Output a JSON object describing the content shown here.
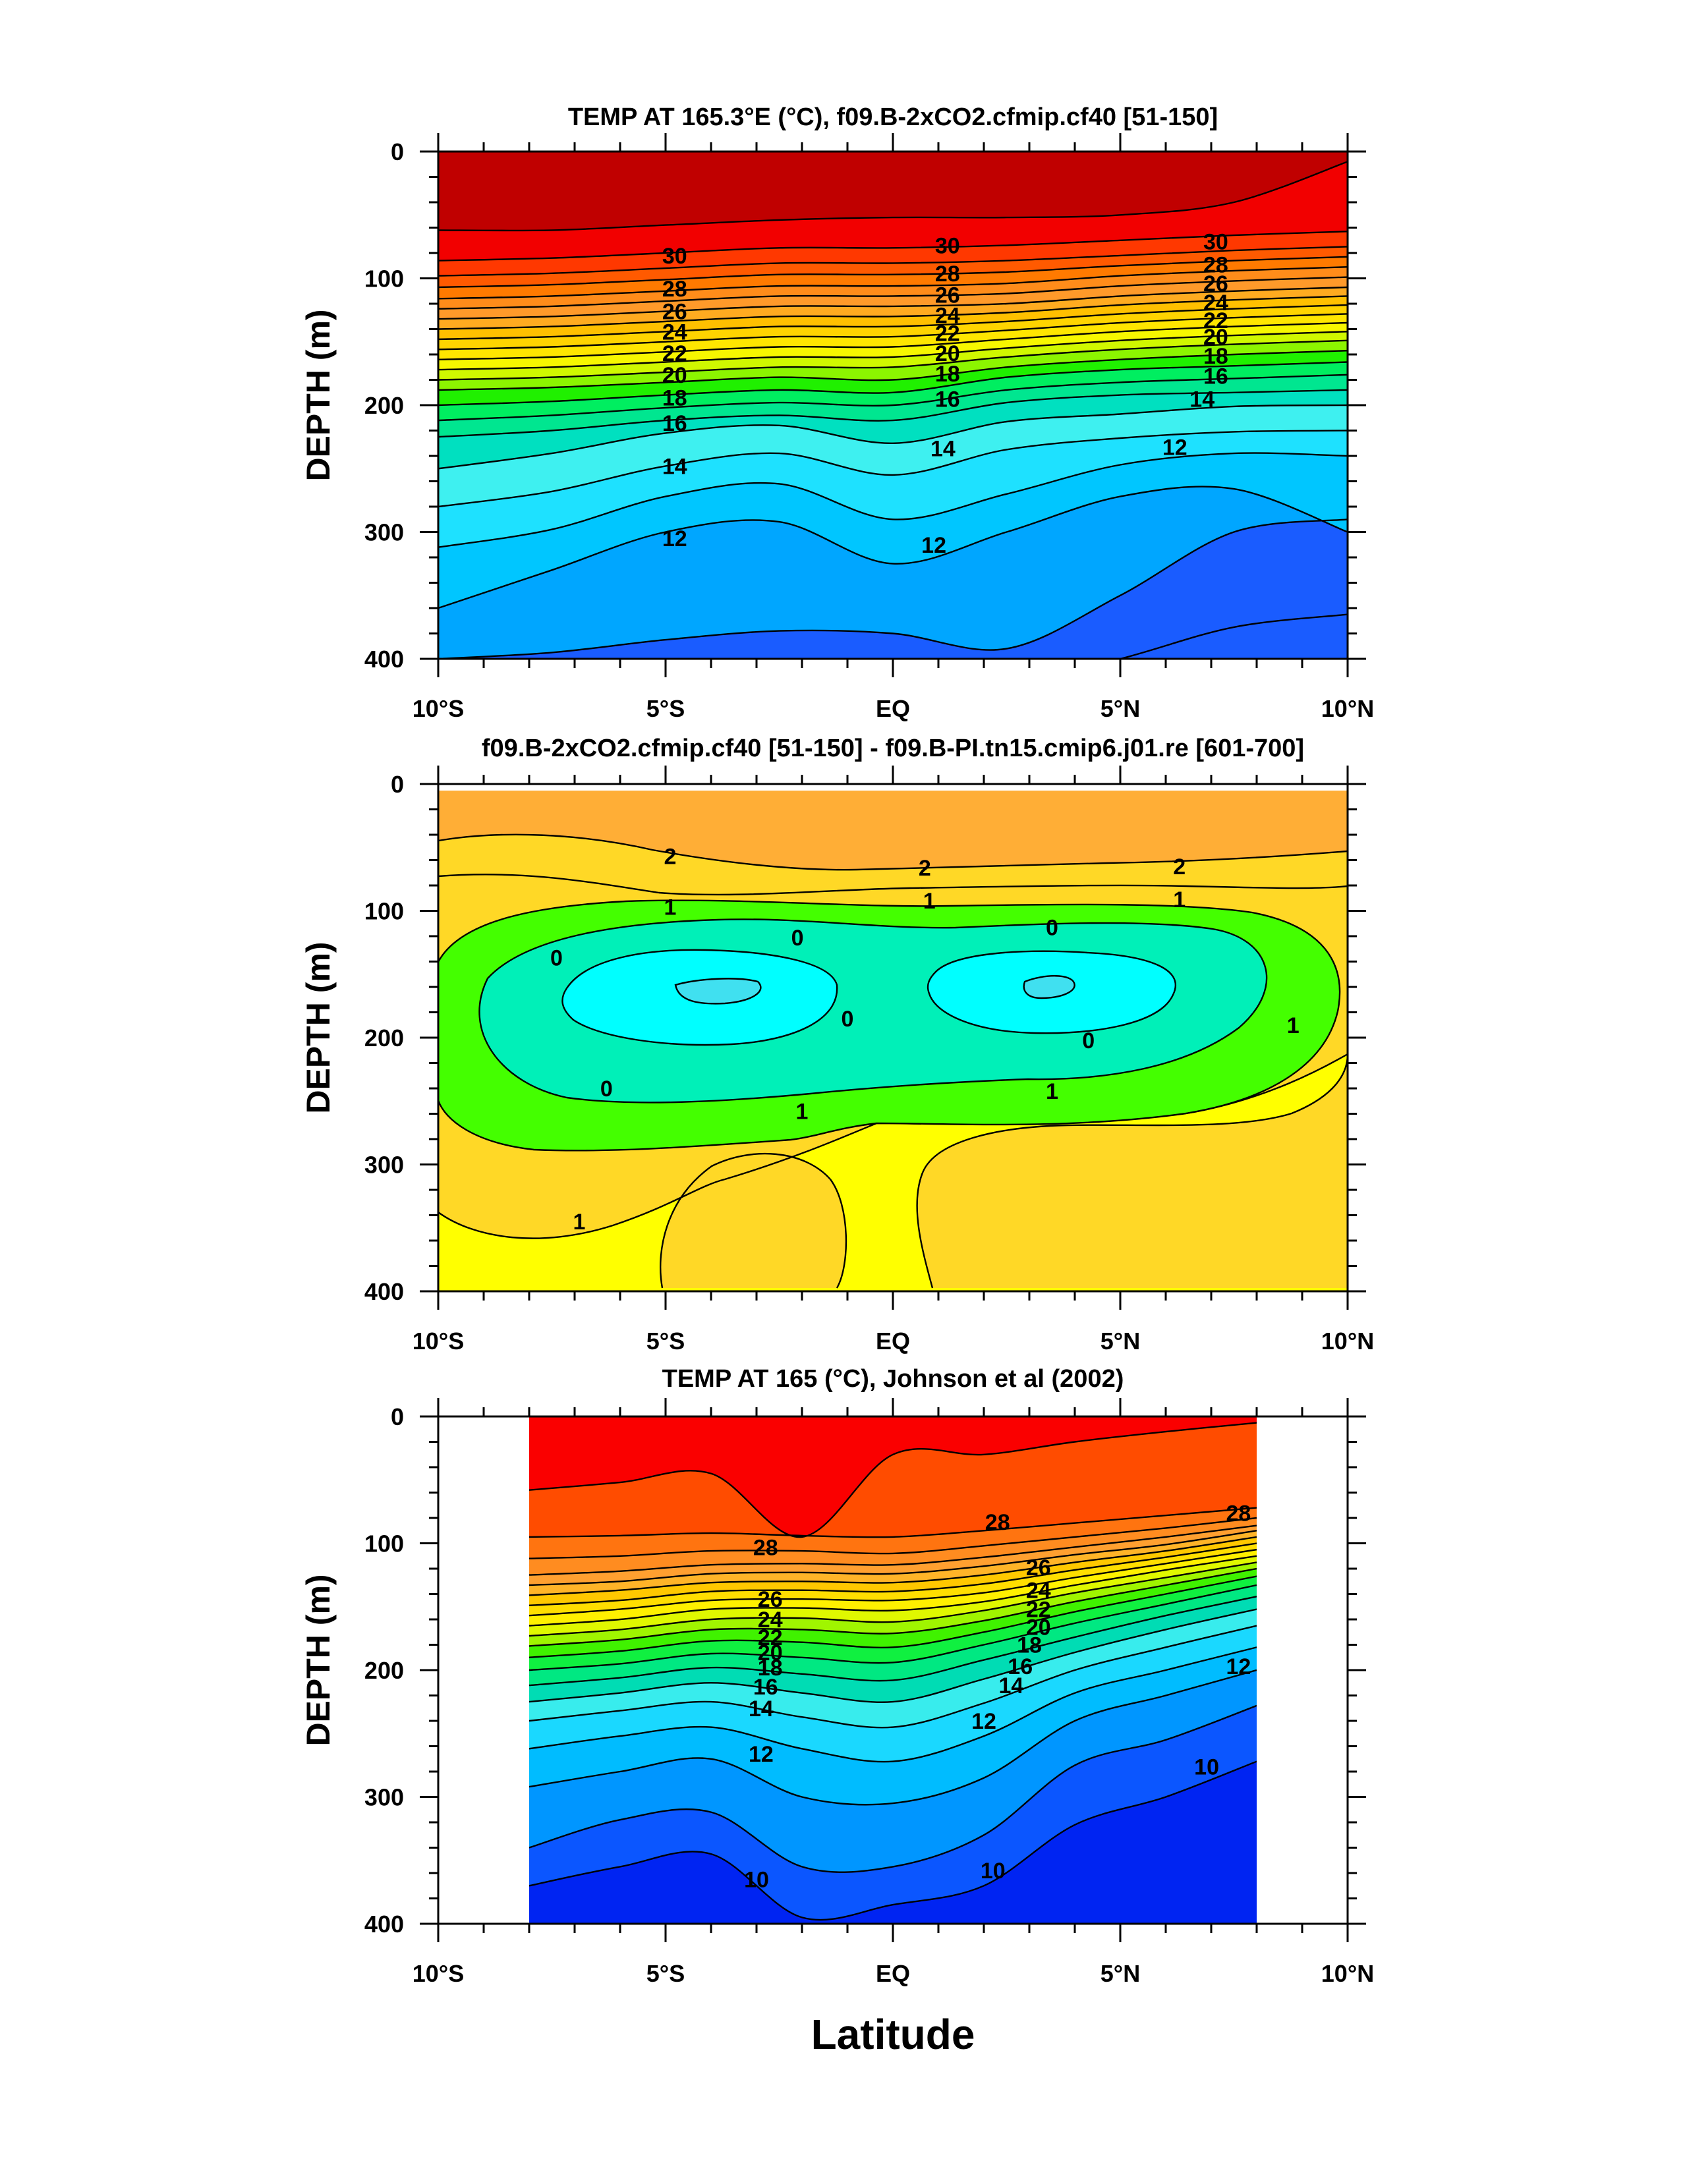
{
  "figure": {
    "xlabel": "Latitude"
  },
  "chart_data": [
    {
      "type": "contour",
      "title": "TEMP AT 165.3°E (°C), f09.B-2xCO2.cfmip.cf40 [51-150]",
      "xlabel": "",
      "ylabel": "DEPTH (m)",
      "xlim": [
        -10,
        10
      ],
      "ylim": [
        400,
        0
      ],
      "x_ticks": [
        -10,
        -5,
        0,
        5,
        10
      ],
      "x_tick_labels": [
        "10°S",
        "5°S",
        "EQ",
        "5°N",
        "10°N"
      ],
      "y_ticks": [
        0,
        100,
        200,
        300,
        400
      ],
      "y_tick_labels": [
        "0",
        "100",
        "200",
        "300",
        "400"
      ],
      "contour_interval": 1,
      "levels": [
        {
          "value": 10,
          "color": "#1a5cff",
          "depth": [
            440,
            440,
            440,
            440,
            440,
            425,
            400,
            375,
            365
          ]
        },
        {
          "value": 11,
          "color": "#00a6ff",
          "depth": [
            400,
            395,
            385,
            378,
            380,
            392,
            350,
            300,
            290
          ]
        },
        {
          "value": 12,
          "color": "#00c6ff",
          "depth": [
            360,
            330,
            300,
            292,
            325,
            300,
            272,
            266,
            300
          ]
        },
        {
          "value": 13,
          "color": "#1ee1ff",
          "depth": [
            312,
            298,
            272,
            262,
            290,
            270,
            247,
            238,
            240
          ]
        },
        {
          "value": 14,
          "color": "#3ef0f0",
          "depth": [
            280,
            268,
            248,
            238,
            255,
            235,
            226,
            221,
            220
          ]
        },
        {
          "value": 15,
          "color": "#00e0c0",
          "depth": [
            250,
            238,
            222,
            216,
            230,
            213,
            207,
            201,
            200
          ]
        },
        {
          "value": 16,
          "color": "#00e690",
          "depth": [
            225,
            220,
            212,
            208,
            212,
            198,
            192,
            190,
            188
          ]
        },
        {
          "value": 17,
          "color": "#00ee60",
          "depth": [
            212,
            208,
            202,
            198,
            200,
            188,
            182,
            179,
            176
          ]
        },
        {
          "value": 18,
          "color": "#20f000",
          "depth": [
            200,
            197,
            192,
            188,
            190,
            178,
            172,
            169,
            166
          ]
        },
        {
          "value": 19,
          "color": "#8cf500",
          "depth": [
            188,
            186,
            182,
            178,
            180,
            170,
            164,
            160,
            157
          ]
        },
        {
          "value": 20,
          "color": "#d0f800",
          "depth": [
            180,
            178,
            174,
            170,
            170,
            162,
            156,
            152,
            149
          ]
        },
        {
          "value": 21,
          "color": "#f7f700",
          "depth": [
            172,
            170,
            166,
            162,
            162,
            155,
            149,
            145,
            142
          ]
        },
        {
          "value": 22,
          "color": "#ffe600",
          "depth": [
            164,
            162,
            158,
            154,
            154,
            148,
            142,
            138,
            135
          ]
        },
        {
          "value": 23,
          "color": "#ffd400",
          "depth": [
            156,
            154,
            150,
            146,
            146,
            141,
            135,
            131,
            128
          ]
        },
        {
          "value": 24,
          "color": "#ffc000",
          "depth": [
            148,
            146,
            142,
            138,
            138,
            134,
            128,
            124,
            121
          ]
        },
        {
          "value": 25,
          "color": "#ffab20",
          "depth": [
            140,
            138,
            134,
            130,
            130,
            127,
            121,
            117,
            114
          ]
        },
        {
          "value": 26,
          "color": "#ff9a2a",
          "depth": [
            132,
            130,
            126,
            122,
            122,
            120,
            114,
            110,
            107
          ]
        },
        {
          "value": 27,
          "color": "#ff8c1a",
          "depth": [
            124,
            122,
            118,
            114,
            114,
            112,
            106,
            102,
            99
          ]
        },
        {
          "value": 28,
          "color": "#ff7a00",
          "depth": [
            116,
            114,
            110,
            106,
            106,
            104,
            98,
            94,
            91
          ]
        },
        {
          "value": 29,
          "color": "#ff5a00",
          "depth": [
            107,
            105,
            101,
            97,
            97,
            95,
            90,
            86,
            83
          ]
        },
        {
          "value": 30,
          "color": "#ff3800",
          "depth": [
            98,
            96,
            92,
            88,
            88,
            86,
            82,
            78,
            75
          ]
        },
        {
          "value": 31,
          "color": "#f20000",
          "depth": [
            86,
            84,
            80,
            76,
            76,
            74,
            70,
            66,
            63
          ]
        },
        {
          "value": 32,
          "color": "#c00000",
          "depth": [
            62,
            62,
            58,
            54,
            52,
            52,
            50,
            40,
            8
          ]
        }
      ],
      "profile_x": [
        -10,
        -7.5,
        -5,
        -2.5,
        0,
        2.5,
        5,
        7.5,
        10
      ],
      "contour_labels": [
        {
          "text": "30",
          "x": -4.8,
          "d": 82
        },
        {
          "text": "30",
          "x": 1.2,
          "d": 74
        },
        {
          "text": "30",
          "x": 7.1,
          "d": 71
        },
        {
          "text": "28",
          "x": -4.8,
          "d": 108
        },
        {
          "text": "28",
          "x": 1.2,
          "d": 96
        },
        {
          "text": "28",
          "x": 7.1,
          "d": 89
        },
        {
          "text": "26",
          "x": -4.8,
          "d": 126
        },
        {
          "text": "26",
          "x": 1.2,
          "d": 113
        },
        {
          "text": "26",
          "x": 7.1,
          "d": 104
        },
        {
          "text": "24",
          "x": -4.8,
          "d": 142
        },
        {
          "text": "24",
          "x": 1.2,
          "d": 129
        },
        {
          "text": "24",
          "x": 7.1,
          "d": 119
        },
        {
          "text": "22",
          "x": -4.8,
          "d": 159
        },
        {
          "text": "22",
          "x": 1.2,
          "d": 143
        },
        {
          "text": "22",
          "x": 7.1,
          "d": 133
        },
        {
          "text": "20",
          "x": -4.8,
          "d": 176
        },
        {
          "text": "20",
          "x": 1.2,
          "d": 159
        },
        {
          "text": "20",
          "x": 7.1,
          "d": 146
        },
        {
          "text": "18",
          "x": -4.8,
          "d": 194
        },
        {
          "text": "18",
          "x": 1.2,
          "d": 175
        },
        {
          "text": "18",
          "x": 7.1,
          "d": 161
        },
        {
          "text": "16",
          "x": -4.8,
          "d": 214
        },
        {
          "text": "16",
          "x": 1.2,
          "d": 195
        },
        {
          "text": "16",
          "x": 7.1,
          "d": 177
        },
        {
          "text": "14",
          "x": -4.8,
          "d": 248
        },
        {
          "text": "14",
          "x": 1.1,
          "d": 234
        },
        {
          "text": "14",
          "x": 6.8,
          "d": 195
        },
        {
          "text": "12",
          "x": -4.8,
          "d": 305
        },
        {
          "text": "12",
          "x": 0.9,
          "d": 310
        },
        {
          "text": "12",
          "x": 6.2,
          "d": 233
        }
      ]
    },
    {
      "type": "contour",
      "title": "f09.B-2xCO2.cfmip.cf40 [51-150] - f09.B-PI.tn15.cmip6.j01.re [601-700]",
      "xlabel": "",
      "ylabel": "DEPTH (m)",
      "xlim": [
        -10,
        10
      ],
      "ylim": [
        400,
        0
      ],
      "x_ticks": [
        -10,
        -5,
        0,
        5,
        10
      ],
      "x_tick_labels": [
        "10°S",
        "5°S",
        "EQ",
        "5°N",
        "10°N"
      ],
      "y_ticks": [
        0,
        100,
        200,
        300,
        400
      ],
      "y_tick_labels": [
        "0",
        "100",
        "200",
        "300",
        "400"
      ],
      "contour_labels": [
        {
          "text": "2",
          "x": -4.9,
          "d": 57
        },
        {
          "text": "2",
          "x": 0.7,
          "d": 66
        },
        {
          "text": "2",
          "x": 6.3,
          "d": 65
        },
        {
          "text": "1",
          "x": -4.9,
          "d": 97
        },
        {
          "text": "1",
          "x": 0.8,
          "d": 92
        },
        {
          "text": "1",
          "x": 6.3,
          "d": 91
        },
        {
          "text": "0",
          "x": -7.4,
          "d": 137
        },
        {
          "text": "0",
          "x": -2.1,
          "d": 121
        },
        {
          "text": "0",
          "x": 3.5,
          "d": 113
        },
        {
          "text": "0",
          "x": -1.0,
          "d": 185
        },
        {
          "text": "0",
          "x": 4.3,
          "d": 202
        },
        {
          "text": "0",
          "x": -6.3,
          "d": 240
        },
        {
          "text": "1",
          "x": -2.0,
          "d": 258
        },
        {
          "text": "1",
          "x": 3.5,
          "d": 242
        },
        {
          "text": "1",
          "x": -6.9,
          "d": 345
        },
        {
          "text": "1",
          "x": 8.8,
          "d": 190
        }
      ]
    },
    {
      "type": "contour",
      "title": "TEMP AT 165 (°C), Johnson et al (2002)",
      "xlabel": "",
      "ylabel": "DEPTH (m)",
      "xlim": [
        -10,
        10
      ],
      "ylim": [
        400,
        0
      ],
      "data_xrange": [
        -8,
        8
      ],
      "x_ticks": [
        -10,
        -5,
        0,
        5,
        10
      ],
      "x_tick_labels": [
        "10°S",
        "5°S",
        "EQ",
        "5°N",
        "10°N"
      ],
      "y_ticks": [
        0,
        100,
        200,
        300,
        400
      ],
      "y_tick_labels": [
        "0",
        "100",
        "200",
        "300",
        "400"
      ],
      "contour_interval": 1,
      "levels": [
        {
          "value": 9,
          "color": "#0024f2",
          "depth": [
            440,
            440,
            440,
            440,
            440,
            440,
            440,
            440,
            440
          ]
        },
        {
          "value": 10,
          "color": "#0b56ff",
          "depth": [
            370,
            355,
            345,
            395,
            385,
            370,
            322,
            300,
            272
          ]
        },
        {
          "value": 11,
          "color": "#0096ff",
          "depth": [
            340,
            318,
            312,
            355,
            355,
            330,
            275,
            255,
            228
          ]
        },
        {
          "value": 12,
          "color": "#00bcff",
          "depth": [
            292,
            280,
            270,
            300,
            305,
            285,
            240,
            220,
            200
          ]
        },
        {
          "value": 13,
          "color": "#1ad8ff",
          "depth": [
            262,
            252,
            245,
            262,
            272,
            252,
            218,
            200,
            182
          ]
        },
        {
          "value": 14,
          "color": "#38eced",
          "depth": [
            240,
            232,
            225,
            237,
            245,
            226,
            200,
            182,
            165
          ]
        },
        {
          "value": 15,
          "color": "#00dcb4",
          "depth": [
            225,
            218,
            210,
            218,
            225,
            207,
            186,
            168,
            152
          ]
        },
        {
          "value": 16,
          "color": "#00e882",
          "depth": [
            212,
            206,
            198,
            203,
            208,
            192,
            174,
            157,
            142
          ]
        },
        {
          "value": 17,
          "color": "#10f040",
          "depth": [
            200,
            195,
            187,
            190,
            194,
            180,
            163,
            148,
            133
          ]
        },
        {
          "value": 18,
          "color": "#40f200",
          "depth": [
            190,
            185,
            177,
            178,
            182,
            170,
            154,
            140,
            126
          ]
        },
        {
          "value": 19,
          "color": "#a0f500",
          "depth": [
            181,
            176,
            168,
            168,
            171,
            161,
            146,
            133,
            120
          ]
        },
        {
          "value": 20,
          "color": "#e0f800",
          "depth": [
            173,
            168,
            160,
            159,
            162,
            153,
            139,
            127,
            115
          ]
        },
        {
          "value": 21,
          "color": "#fff000",
          "depth": [
            165,
            160,
            152,
            151,
            153,
            146,
            133,
            121,
            110
          ]
        },
        {
          "value": 22,
          "color": "#ffde00",
          "depth": [
            157,
            152,
            145,
            144,
            145,
            139,
            127,
            116,
            105
          ]
        },
        {
          "value": 23,
          "color": "#ffc800",
          "depth": [
            149,
            145,
            138,
            137,
            138,
            132,
            121,
            111,
            100
          ]
        },
        {
          "value": 24,
          "color": "#ffb428",
          "depth": [
            141,
            137,
            131,
            130,
            131,
            125,
            115,
            106,
            95
          ]
        },
        {
          "value": 25,
          "color": "#ffa030",
          "depth": [
            133,
            130,
            124,
            123,
            124,
            118,
            109,
            101,
            90
          ]
        },
        {
          "value": 26,
          "color": "#ff8c20",
          "depth": [
            125,
            122,
            117,
            116,
            117,
            111,
            103,
            95,
            86
          ]
        },
        {
          "value": 27,
          "color": "#ff7410",
          "depth": [
            112,
            110,
            106,
            106,
            108,
            102,
            95,
            88,
            80
          ]
        },
        {
          "value": 28,
          "color": "#ff4c00",
          "depth": [
            95,
            94,
            92,
            94,
            95,
            90,
            84,
            78,
            72
          ]
        },
        {
          "value": 29,
          "color": "#fa0000",
          "depth": [
            58,
            52,
            45,
            95,
            30,
            30,
            20,
            12,
            5
          ]
        },
        {
          "value": 30,
          "color": "#d80000",
          "depth": [
            -20,
            -20,
            -20,
            -20,
            -20,
            -20,
            -20,
            -20,
            -20
          ]
        }
      ],
      "profile_x": [
        -8,
        -6,
        -4,
        -2,
        0,
        2,
        4,
        6,
        8
      ],
      "contour_labels": [
        {
          "text": "28",
          "x": -2.8,
          "d": 103
        },
        {
          "text": "28",
          "x": 2.3,
          "d": 83
        },
        {
          "text": "28",
          "x": 7.6,
          "d": 76
        },
        {
          "text": "26",
          "x": -2.7,
          "d": 144
        },
        {
          "text": "26",
          "x": 3.2,
          "d": 119
        },
        {
          "text": "24",
          "x": -2.7,
          "d": 160
        },
        {
          "text": "24",
          "x": 3.2,
          "d": 137
        },
        {
          "text": "22",
          "x": -2.7,
          "d": 174
        },
        {
          "text": "22",
          "x": 3.2,
          "d": 152
        },
        {
          "text": "20",
          "x": -2.7,
          "d": 186
        },
        {
          "text": "20",
          "x": 3.2,
          "d": 166
        },
        {
          "text": "18",
          "x": -2.7,
          "d": 198
        },
        {
          "text": "18",
          "x": 3.0,
          "d": 180
        },
        {
          "text": "16",
          "x": -2.8,
          "d": 213
        },
        {
          "text": "16",
          "x": 2.8,
          "d": 197
        },
        {
          "text": "14",
          "x": -2.9,
          "d": 230
        },
        {
          "text": "14",
          "x": 2.6,
          "d": 212
        },
        {
          "text": "12",
          "x": -2.9,
          "d": 266
        },
        {
          "text": "12",
          "x": 2.0,
          "d": 240
        },
        {
          "text": "12",
          "x": 7.6,
          "d": 197
        },
        {
          "text": "10",
          "x": -3.0,
          "d": 365
        },
        {
          "text": "10",
          "x": 2.2,
          "d": 358
        },
        {
          "text": "10",
          "x": 6.9,
          "d": 276
        }
      ]
    }
  ]
}
